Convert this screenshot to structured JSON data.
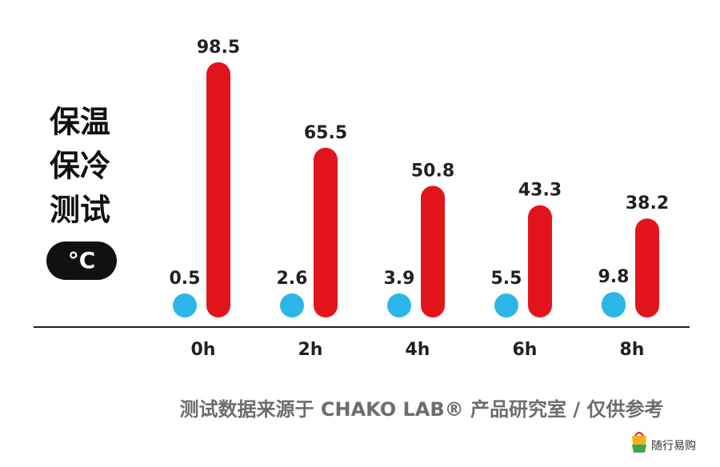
{
  "chart_data": {
    "type": "bar",
    "title": [
      "保温",
      "保冷",
      "测试"
    ],
    "unit": "°C",
    "categories": [
      "0h",
      "2h",
      "4h",
      "6h",
      "8h"
    ],
    "series": [
      {
        "color": "#2cb6e7",
        "values": [
          0.5,
          2.6,
          3.9,
          5.5,
          9.8
        ]
      },
      {
        "color": "#e2151d",
        "values": [
          98.5,
          65.5,
          50.8,
          43.3,
          38.2
        ]
      }
    ],
    "ylim": [
      0,
      100
    ],
    "footer": "测试数据来源于 CHAKO LAB® 产品研究室 / 仅供参考",
    "watermark": "随行易购"
  }
}
